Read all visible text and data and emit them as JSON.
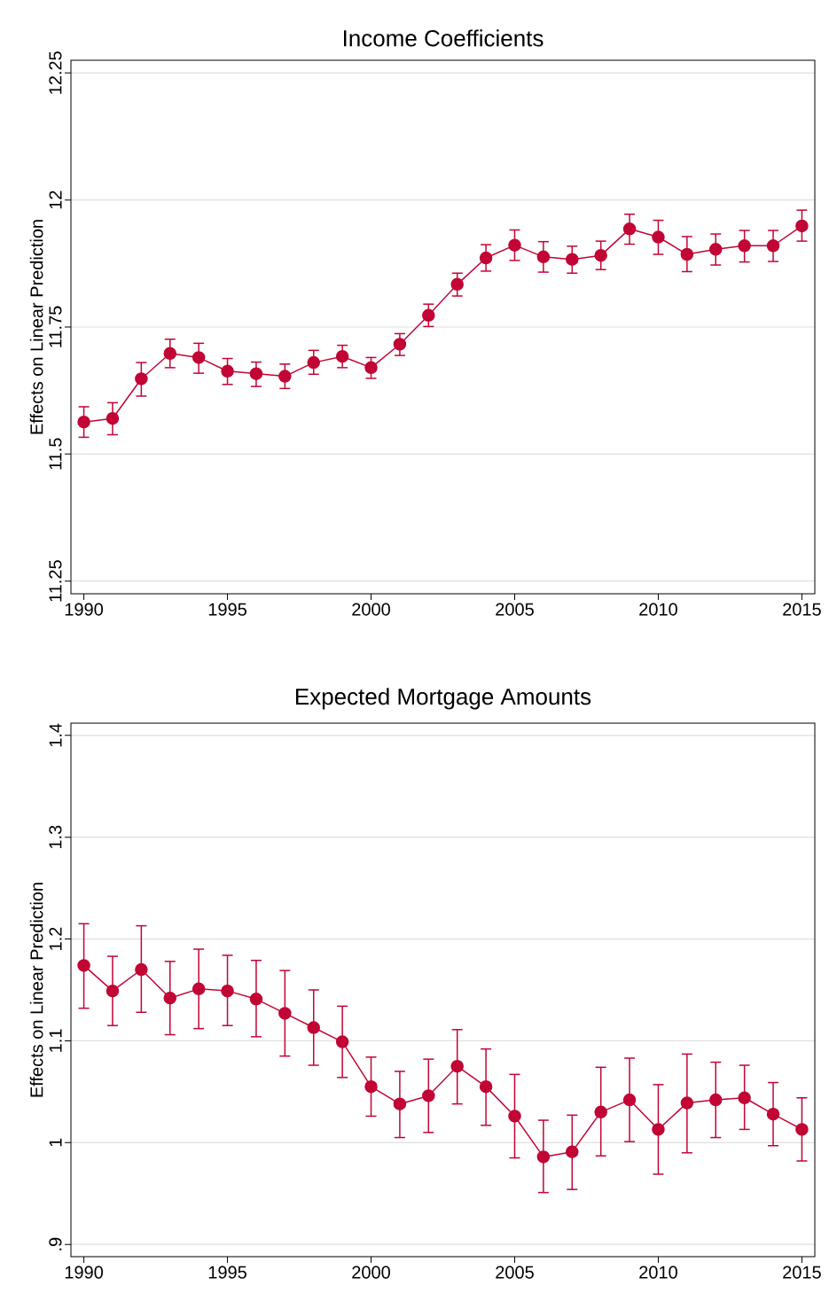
{
  "chart_data": [
    {
      "type": "line",
      "title": "Income Coefficients",
      "ylabel": "Effects on Linear Prediction",
      "x": [
        1990,
        1991,
        1992,
        1993,
        1994,
        1995,
        1996,
        1997,
        1998,
        1999,
        2000,
        2001,
        2002,
        2003,
        2004,
        2005,
        2006,
        2007,
        2008,
        2009,
        2010,
        2011,
        2012,
        2013,
        2014,
        2015
      ],
      "values": [
        11.563,
        11.57,
        11.648,
        11.698,
        11.69,
        11.663,
        11.658,
        11.653,
        11.68,
        11.692,
        11.67,
        11.716,
        11.773,
        11.834,
        11.886,
        11.911,
        11.888,
        11.883,
        11.891,
        11.943,
        11.927,
        11.893,
        11.903,
        11.91,
        11.91,
        11.949
      ],
      "errors": [
        [
          11.533,
          11.593
        ],
        [
          11.538,
          11.601
        ],
        [
          11.614,
          11.68
        ],
        [
          11.67,
          11.726
        ],
        [
          11.659,
          11.718
        ],
        [
          11.637,
          11.688
        ],
        [
          11.633,
          11.681
        ],
        [
          11.629,
          11.677
        ],
        [
          11.657,
          11.704
        ],
        [
          11.67,
          11.714
        ],
        [
          11.649,
          11.69
        ],
        [
          11.694,
          11.737
        ],
        [
          11.751,
          11.795
        ],
        [
          11.811,
          11.856
        ],
        [
          11.86,
          11.912
        ],
        [
          11.881,
          11.941
        ],
        [
          11.858,
          11.918
        ],
        [
          11.856,
          11.909
        ],
        [
          11.863,
          11.919
        ],
        [
          11.913,
          11.972
        ],
        [
          11.893,
          11.96
        ],
        [
          11.859,
          11.928
        ],
        [
          11.872,
          11.933
        ],
        [
          11.878,
          11.94
        ],
        [
          11.879,
          11.94
        ],
        [
          11.919,
          11.98
        ]
      ],
      "color": "#c10534",
      "marker": "circle",
      "line_style": "solid",
      "grid": "y",
      "xlim": [
        1989.55,
        2015.45
      ],
      "xticks": [
        1990,
        1995,
        2000,
        2005,
        2010,
        2015
      ],
      "ylim": [
        11.225,
        12.275
      ],
      "yticks": [
        11.25,
        11.5,
        11.75,
        12,
        12.25
      ]
    },
    {
      "type": "line",
      "title": "Expected Mortgage Amounts",
      "ylabel": "Effects on Linear Prediction",
      "x": [
        1990,
        1991,
        1992,
        1993,
        1994,
        1995,
        1996,
        1997,
        1998,
        1999,
        2000,
        2001,
        2002,
        2003,
        2004,
        2005,
        2006,
        2007,
        2008,
        2009,
        2010,
        2011,
        2012,
        2013,
        2014,
        2015
      ],
      "values": [
        1.174,
        1.149,
        1.17,
        1.142,
        1.151,
        1.149,
        1.141,
        1.127,
        1.113,
        1.099,
        1.055,
        1.038,
        1.046,
        1.075,
        1.055,
        1.026,
        0.986,
        0.991,
        1.03,
        1.042,
        1.013,
        1.039,
        1.042,
        1.044,
        1.028,
        1.013
      ],
      "errors": [
        [
          1.132,
          1.215
        ],
        [
          1.115,
          1.183
        ],
        [
          1.128,
          1.213
        ],
        [
          1.106,
          1.178
        ],
        [
          1.112,
          1.19
        ],
        [
          1.115,
          1.184
        ],
        [
          1.104,
          1.179
        ],
        [
          1.085,
          1.169
        ],
        [
          1.076,
          1.15
        ],
        [
          1.064,
          1.134
        ],
        [
          1.026,
          1.084
        ],
        [
          1.005,
          1.07
        ],
        [
          1.01,
          1.082
        ],
        [
          1.038,
          1.111
        ],
        [
          1.017,
          1.092
        ],
        [
          0.985,
          1.067
        ],
        [
          0.951,
          1.022
        ],
        [
          0.954,
          1.027
        ],
        [
          0.987,
          1.074
        ],
        [
          1.001,
          1.083
        ],
        [
          0.969,
          1.057
        ],
        [
          0.99,
          1.087
        ],
        [
          1.005,
          1.079
        ],
        [
          1.013,
          1.076
        ],
        [
          0.997,
          1.059
        ],
        [
          0.982,
          1.044
        ]
      ],
      "color": "#c10534",
      "marker": "circle",
      "line_style": "solid",
      "grid": "y",
      "xlim": [
        1989.55,
        2015.45
      ],
      "xticks": [
        1990,
        1995,
        2000,
        2005,
        2010,
        2015
      ],
      "ylim": [
        0.888,
        1.412
      ],
      "yticks": [
        {
          "value": 0.9,
          "label": ".9"
        },
        1,
        1.1,
        1.2,
        1.3,
        1.4
      ]
    }
  ]
}
